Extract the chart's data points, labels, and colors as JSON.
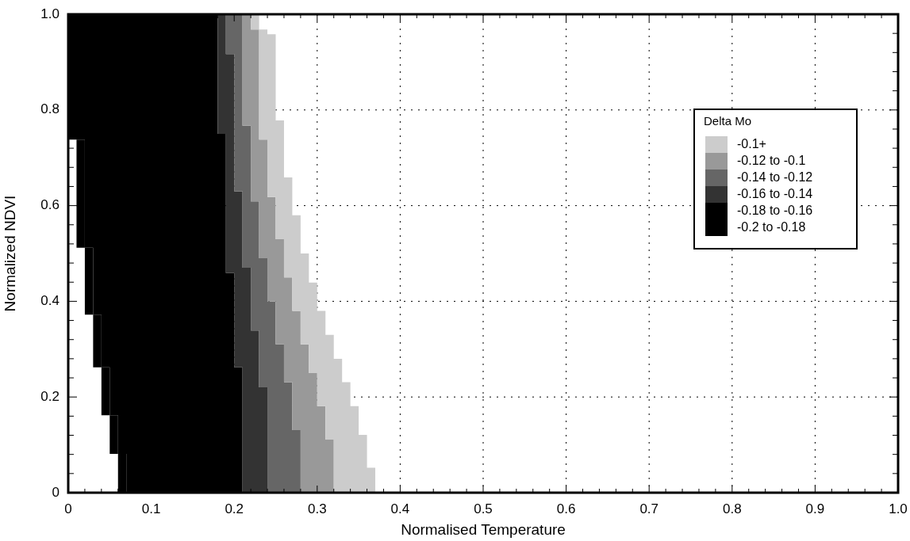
{
  "chart_data": {
    "type": "area",
    "orientation": "horizontal",
    "stacked": true,
    "xlabel": "Normalised Temperature",
    "ylabel": "Normalized NDVI",
    "legend_title": "Delta Mo",
    "legend": "top right",
    "grid": true,
    "xlim": [
      0,
      1
    ],
    "ylim": [
      0,
      1
    ],
    "xticks": [
      0,
      {
        "value": 0.02,
        "label": null
      },
      {
        "value": 0.04,
        "label": null
      },
      {
        "value": 0.06,
        "label": null
      },
      {
        "value": 0.08,
        "label": null
      },
      0.1,
      {
        "value": 0.12,
        "label": null
      },
      {
        "value": 0.14,
        "label": null
      },
      {
        "value": 0.16,
        "label": null
      },
      {
        "value": 0.18,
        "label": null
      },
      0.2,
      {
        "value": 0.22,
        "label": null
      },
      {
        "value": 0.24,
        "label": null
      },
      {
        "value": 0.26,
        "label": null
      },
      {
        "value": 0.28,
        "label": null
      },
      0.3,
      {
        "value": 0.32,
        "label": null
      },
      {
        "value": 0.34,
        "label": null
      },
      {
        "value": 0.36,
        "label": null
      },
      {
        "value": 0.38,
        "label": null
      },
      0.4,
      {
        "value": 0.42,
        "label": null
      },
      {
        "value": 0.44,
        "label": null
      },
      {
        "value": 0.46,
        "label": null
      },
      {
        "value": 0.48,
        "label": null
      },
      0.5,
      {
        "value": 0.52,
        "label": null
      },
      {
        "value": 0.54,
        "label": null
      },
      {
        "value": 0.56,
        "label": null
      },
      {
        "value": 0.58,
        "label": null
      },
      0.6,
      {
        "value": 0.62,
        "label": null
      },
      {
        "value": 0.64,
        "label": null
      },
      {
        "value": 0.66,
        "label": null
      },
      {
        "value": 0.68,
        "label": null
      },
      0.7,
      {
        "value": 0.72,
        "label": null
      },
      {
        "value": 0.74,
        "label": null
      },
      {
        "value": 0.76,
        "label": null
      },
      {
        "value": 0.78,
        "label": null
      },
      0.8,
      {
        "value": 0.82,
        "label": null
      },
      {
        "value": 0.84,
        "label": null
      },
      {
        "value": 0.86,
        "label": null
      },
      {
        "value": 0.88,
        "label": null
      },
      0.9,
      {
        "value": 0.92,
        "label": null
      },
      {
        "value": 0.94,
        "label": null
      },
      {
        "value": 0.96,
        "label": null
      },
      {
        "value": 0.98,
        "label": null
      },
      {
        "value": 1,
        "label": "1.0"
      }
    ],
    "yticks": [
      0,
      {
        "value": 0.04,
        "label": null
      },
      {
        "value": 0.08,
        "label": null
      },
      {
        "value": 0.12,
        "label": null
      },
      {
        "value": 0.16,
        "label": null
      },
      0.2,
      {
        "value": 0.24,
        "label": null
      },
      {
        "value": 0.28,
        "label": null
      },
      {
        "value": 0.32,
        "label": null
      },
      {
        "value": 0.36,
        "label": null
      },
      0.4,
      {
        "value": 0.44,
        "label": null
      },
      {
        "value": 0.48,
        "label": null
      },
      {
        "value": 0.52,
        "label": null
      },
      {
        "value": 0.56,
        "label": null
      },
      0.6,
      {
        "value": 0.64,
        "label": null
      },
      {
        "value": 0.68,
        "label": null
      },
      {
        "value": 0.72,
        "label": null
      },
      {
        "value": 0.76,
        "label": null
      },
      0.8,
      {
        "value": 0.84,
        "label": null
      },
      {
        "value": 0.88,
        "label": null
      },
      {
        "value": 0.92,
        "label": null
      },
      {
        "value": 0.96,
        "label": null
      },
      {
        "value": 1,
        "label": "1.0"
      }
    ],
    "x": [
      0,
      0.052,
      0.081,
      0.111,
      0.121,
      0.131,
      0.162,
      0.181,
      0.22,
      0.231,
      0.25,
      0.262,
      0.28,
      0.31,
      0.33,
      0.339,
      0.372,
      0.38,
      0.4,
      0.439,
      0.45,
      0.459,
      0.47,
      0.49,
      0.5,
      0.512,
      0.53,
      0.58,
      0.609,
      0.618,
      0.63,
      0.659,
      0.738,
      0.75,
      0.767,
      0.778,
      0.917,
      0.958,
      0.968,
      1
    ],
    "series": [
      {
        "color": "#ffffff",
        "values": [
          0.06,
          0.06,
          0.05,
          0.05,
          0.05,
          0.05,
          0.04,
          0.04,
          0.04,
          0.04,
          0.04,
          0.03,
          0.03,
          0.03,
          0.03,
          0.03,
          0.02,
          0.02,
          0.02,
          0.02,
          0.02,
          0.02,
          0.02,
          0.02,
          0.02,
          0.01,
          0.01,
          0.01,
          0.01,
          0.01,
          0.01,
          0.01,
          0,
          0,
          0,
          0,
          0,
          0,
          0,
          0
        ]
      },
      {
        "name": "-0.2 to -0.18",
        "color": "#000000",
        "values": [
          0.01,
          0.01,
          0.01,
          0.01,
          0.01,
          0.01,
          0.01,
          0.01,
          0.01,
          0.01,
          0.01,
          0.01,
          0.01,
          0.01,
          0.01,
          0.01,
          0.01,
          0.01,
          0.01,
          0.01,
          0.01,
          0.01,
          0.01,
          0.01,
          0.01,
          0.01,
          0.01,
          0.01,
          0.01,
          0.01,
          0.01,
          0.01,
          0,
          0,
          0,
          0,
          0,
          0,
          0,
          0
        ]
      },
      {
        "name": "-0.18 to -0.16",
        "color": "#000000",
        "values": [
          0.14,
          0.14,
          0.15,
          0.15,
          0.15,
          0.15,
          0.16,
          0.16,
          0.16,
          0.16,
          0.16,
          0.16,
          0.16,
          0.16,
          0.16,
          0.16,
          0.17,
          0.17,
          0.17,
          0.17,
          0.17,
          0.16,
          0.16,
          0.16,
          0.16,
          0.17,
          0.17,
          0.17,
          0.17,
          0.17,
          0.17,
          0.17,
          0.19,
          0.18,
          0.18,
          0.18,
          0.18,
          0.18,
          0.18,
          0.18
        ]
      },
      {
        "name": "-0.16 to -0.14",
        "color": "#333333",
        "values": [
          0.03,
          0.03,
          0.03,
          0.03,
          0.03,
          0.03,
          0.03,
          0.03,
          0.02,
          0.02,
          0.02,
          0.03,
          0.03,
          0.03,
          0.03,
          0.02,
          0.02,
          0.02,
          0.02,
          0.02,
          0.02,
          0.03,
          0.02,
          0.02,
          0.02,
          0.02,
          0.02,
          0.02,
          0.02,
          0.02,
          0.01,
          0.01,
          0.01,
          0.02,
          0.02,
          0.02,
          0.01,
          0.01,
          0.01,
          0.01
        ]
      },
      {
        "name": "-0.14 to -0.12",
        "color": "#666666",
        "values": [
          0.04,
          0.04,
          0.04,
          0.04,
          0.04,
          0.03,
          0.03,
          0.03,
          0.04,
          0.03,
          0.03,
          0.03,
          0.03,
          0.02,
          0.02,
          0.03,
          0.03,
          0.03,
          0.02,
          0.02,
          0.02,
          0.02,
          0.03,
          0.02,
          0.02,
          0.02,
          0.02,
          0.02,
          0.01,
          0.01,
          0.02,
          0.02,
          0.02,
          0.02,
          0.01,
          0.01,
          0.02,
          0.02,
          0.02,
          0.02
        ]
      },
      {
        "name": "-0.12 to -0.1",
        "color": "#999999",
        "values": [
          0.04,
          0.04,
          0.04,
          0.03,
          0.03,
          0.04,
          0.04,
          0.03,
          0.03,
          0.04,
          0.03,
          0.03,
          0.03,
          0.03,
          0.03,
          0.03,
          0.03,
          0.02,
          0.03,
          0.03,
          0.02,
          0.02,
          0.02,
          0.03,
          0.03,
          0.03,
          0.02,
          0.02,
          0.03,
          0.02,
          0.02,
          0.02,
          0.01,
          0.01,
          0.02,
          0.02,
          0.02,
          0.02,
          0.01,
          0.01
        ]
      },
      {
        "name": "-0.1+",
        "color": "#cccccc",
        "values": [
          0.05,
          0.04,
          0.04,
          0.05,
          0.04,
          0.04,
          0.04,
          0.04,
          0.04,
          0.03,
          0.04,
          0.04,
          0.03,
          0.04,
          0.03,
          0.03,
          0.03,
          0.03,
          0.03,
          0.02,
          0.03,
          0.03,
          0.03,
          0.03,
          0.02,
          0.02,
          0.03,
          0.02,
          0.02,
          0.03,
          0.03,
          0.02,
          0.03,
          0.03,
          0.03,
          0.02,
          0.02,
          0.01,
          0.01,
          0.01
        ]
      }
    ]
  }
}
